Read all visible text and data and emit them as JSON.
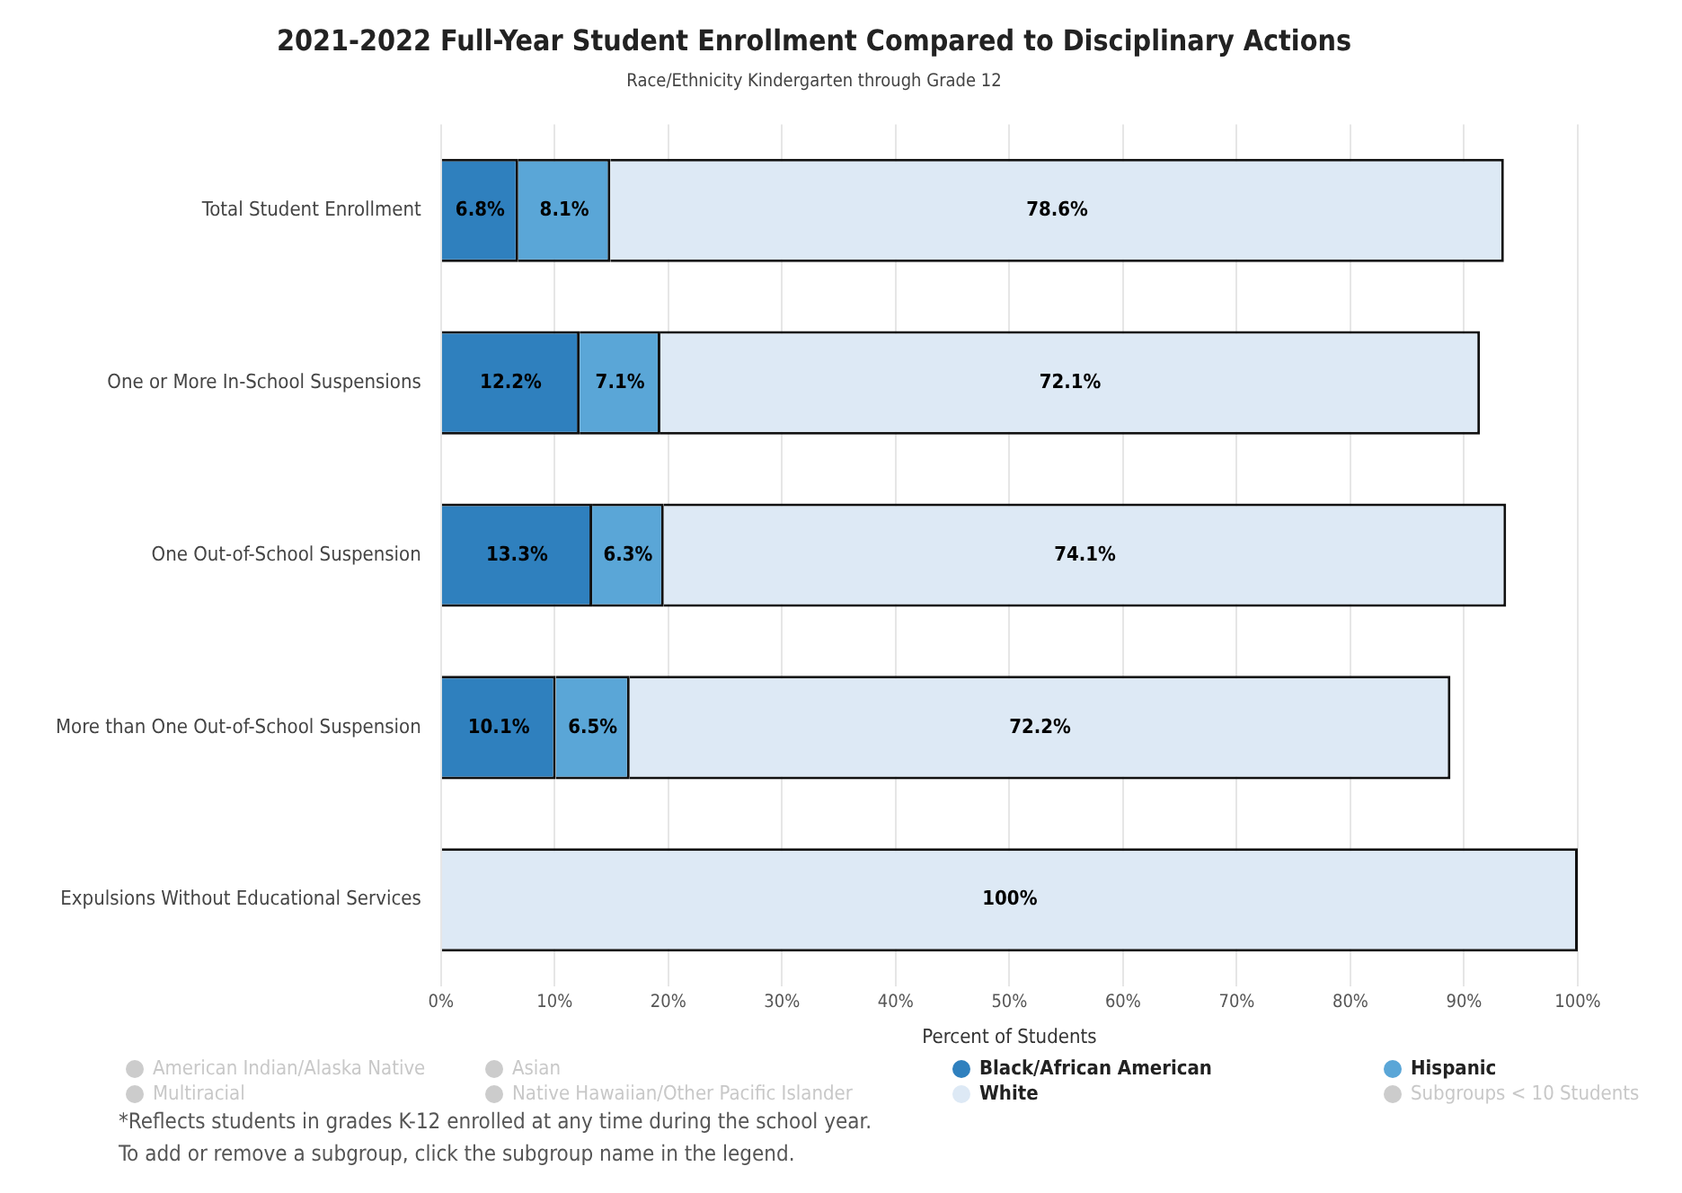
{
  "chart_data": {
    "type": "bar",
    "orientation": "horizontal",
    "stacked": true,
    "title": "2021-2022 Full-Year Student Enrollment Compared to Disciplinary Actions",
    "subtitle": "Race/Ethnicity Kindergarten through Grade 12",
    "xlabel": "Percent of Students",
    "categories": [
      "Total Student Enrollment",
      "One or More In-School Suspensions",
      "One Out-of-School Suspension",
      "More than One Out-of-School Suspension",
      "Expulsions Without Educational Services"
    ],
    "series": [
      {
        "name": "American Indian/Alaska Native",
        "color": "#cccccc",
        "values": [
          null,
          null,
          null,
          null,
          null
        ]
      },
      {
        "name": "Asian",
        "color": "#cccccc",
        "values": [
          null,
          null,
          null,
          null,
          null
        ]
      },
      {
        "name": "Black/African American",
        "color": "#2f80be",
        "values": [
          6.8,
          12.2,
          13.3,
          10.1,
          null
        ],
        "value_labels": [
          "6.8%",
          "12.2%",
          "13.3%",
          "10.1%",
          null
        ]
      },
      {
        "name": "Hispanic",
        "color": "#5aa6d7",
        "values": [
          8.1,
          7.1,
          6.3,
          6.5,
          null
        ],
        "value_labels": [
          "8.1%",
          "7.1%",
          "6.3%",
          "6.5%",
          null
        ]
      },
      {
        "name": "Multiracial",
        "color": "#cccccc",
        "values": [
          null,
          null,
          null,
          null,
          null
        ]
      },
      {
        "name": "Native Hawaiian/Other Pacific Islander",
        "color": "#cccccc",
        "values": [
          null,
          null,
          null,
          null,
          null
        ]
      },
      {
        "name": "White",
        "color": "#dde9f5",
        "values": [
          78.6,
          72.1,
          74.1,
          72.2,
          100
        ],
        "value_labels": [
          "78.6%",
          "72.1%",
          "74.1%",
          "72.2%",
          "100%"
        ]
      },
      {
        "name": "Subgroups < 10 Students",
        "color": "#cccccc",
        "values": [
          null,
          null,
          null,
          null,
          null
        ]
      }
    ],
    "xlim": [
      0,
      100
    ],
    "xticks": [
      {
        "value": 0,
        "label": "0%"
      },
      {
        "value": 10,
        "label": "10%"
      },
      {
        "value": 20,
        "label": "20%"
      },
      {
        "value": 30,
        "label": "30%"
      },
      {
        "value": 40,
        "label": "40%"
      },
      {
        "value": 50,
        "label": "50%"
      },
      {
        "value": 60,
        "label": "60%"
      },
      {
        "value": 70,
        "label": "70%"
      },
      {
        "value": 80,
        "label": "80%"
      },
      {
        "value": 90,
        "label": "90%"
      },
      {
        "value": 100,
        "label": "100%"
      }
    ],
    "grid": "x",
    "legend": "bottom",
    "annotations": [
      "*Reflects students in grades K-12 enrolled at any time during the school year.",
      "To add or remove a subgroup, click the subgroup name in the legend."
    ]
  }
}
